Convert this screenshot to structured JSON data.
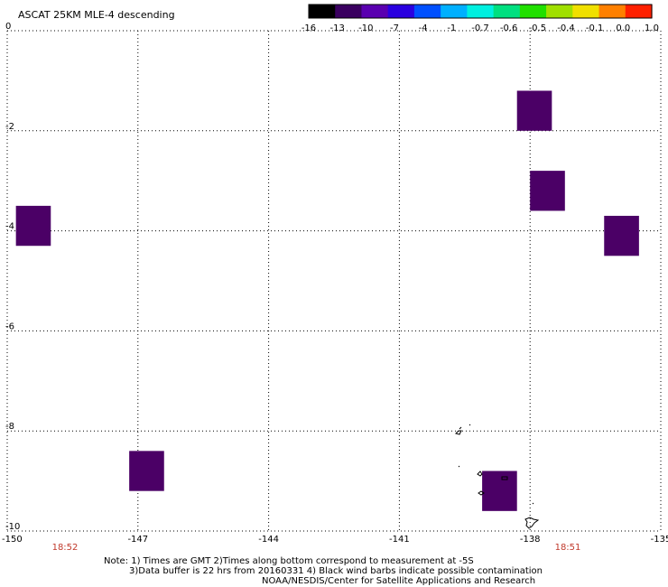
{
  "title": "ASCAT 25KM MLE-4 descending",
  "colorbar": {
    "labels": [
      "-16",
      "-13",
      "-10",
      "-7",
      "-4",
      "-1",
      "-0.7",
      "-0.6",
      "-0.5",
      "-0.4",
      "-0.1",
      "0.0",
      "1.0"
    ],
    "colors": [
      "#000000",
      "#3a0060",
      "#5a00b0",
      "#2a00e0",
      "#0050ff",
      "#00b0ff",
      "#00f0e0",
      "#00e080",
      "#20e000",
      "#a0e000",
      "#f0e000",
      "#ff8000",
      "#ff2000"
    ]
  },
  "axes": {
    "x_labels": [
      "-150",
      "-147",
      "-144",
      "-141",
      "-138",
      "-135"
    ],
    "y_labels": [
      "0",
      "-2",
      "-4",
      "-6",
      "-8",
      "-10"
    ],
    "xlim": [
      -150,
      -135
    ],
    "ylim": [
      -10,
      0
    ],
    "grid": true
  },
  "times": [
    "18:52",
    "18:51"
  ],
  "cells": [
    {
      "lon": [
        -138.3,
        -137.5
      ],
      "lat": [
        -1.2,
        -2.0
      ],
      "color": "#4b0066"
    },
    {
      "lon": [
        -138.0,
        -137.2
      ],
      "lat": [
        -2.8,
        -3.6
      ],
      "color": "#4b0066"
    },
    {
      "lon": [
        -136.3,
        -135.5
      ],
      "lat": [
        -3.7,
        -4.5
      ],
      "color": "#4b0066"
    },
    {
      "lon": [
        -149.8,
        -149.0
      ],
      "lat": [
        -3.5,
        -4.3
      ],
      "color": "#4b0066"
    },
    {
      "lon": [
        -147.2,
        -146.4
      ],
      "lat": [
        -8.4,
        -9.2
      ],
      "color": "#4b0066"
    },
    {
      "lon": [
        -139.1,
        -138.3
      ],
      "lat": [
        -8.8,
        -9.6
      ],
      "color": "#4b0066"
    }
  ],
  "notes": {
    "line1": "Note: 1) Times are GMT 2)Times along bottom correspond to measurement at -5S",
    "line2": "3)Data buffer is 22 hrs from 20160331 4) Black wind barbs indicate possible contamination",
    "line3": "NOAA/NESDIS/Center for Satellite Applications and Research"
  }
}
